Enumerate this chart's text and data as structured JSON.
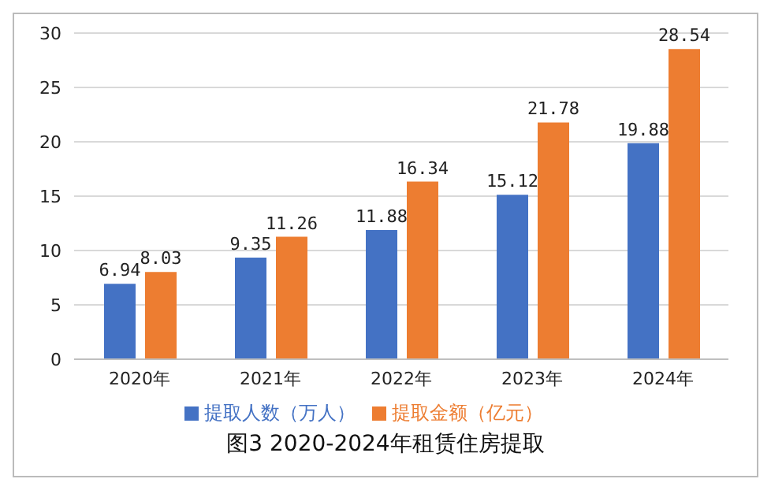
{
  "chart_data": {
    "type": "bar",
    "title": "图3 2020-2024年租赁住房提取",
    "categories": [
      "2020年",
      "2021年",
      "2022年",
      "2023年",
      "2024年"
    ],
    "series": [
      {
        "name": "提取人数（万人）",
        "color": "#4472c4",
        "values": [
          6.94,
          9.35,
          11.88,
          15.12,
          19.88
        ]
      },
      {
        "name": "提取金额（亿元）",
        "color": "#ed7d31",
        "values": [
          8.03,
          11.26,
          16.34,
          21.78,
          28.54
        ]
      }
    ],
    "ylim": [
      0,
      30
    ],
    "yticks": [
      0,
      5,
      10,
      15,
      20,
      25,
      30
    ],
    "grid": "y",
    "legend": "bottom",
    "data_labels": true
  }
}
